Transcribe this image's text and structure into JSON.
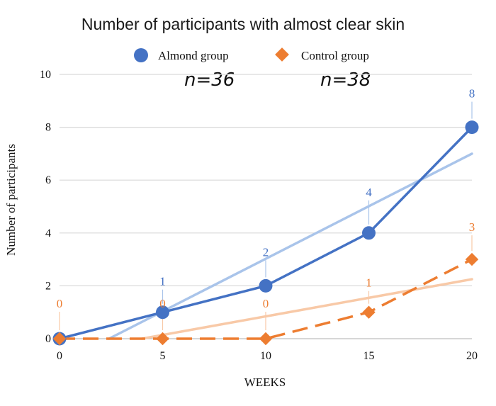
{
  "chart_data": {
    "type": "line",
    "title": "Number of participants with almost clear skin",
    "xlabel": "WEEKS",
    "ylabel": "Number of participants",
    "x": [
      0,
      5,
      10,
      15,
      20
    ],
    "x_ticks": [
      "0",
      "5",
      "10",
      "15",
      "20"
    ],
    "y_ticks": [
      "0",
      "2",
      "4",
      "6",
      "8",
      "10"
    ],
    "xlim": [
      0,
      20
    ],
    "ylim": [
      0,
      10
    ],
    "grid": true,
    "legend_position": "top",
    "annotations": [
      "n=36",
      "n=38"
    ],
    "series": [
      {
        "name": "Almond group",
        "values": [
          0,
          1,
          2,
          4,
          8
        ],
        "data_labels": [
          "",
          "1",
          "2",
          "4",
          "8"
        ],
        "color": "#4472c4",
        "trendline_color": "#a9c4ea",
        "trendline": [
          [
            2.4,
            0
          ],
          [
            20,
            7
          ]
        ],
        "marker": "circle",
        "line_style": "solid"
      },
      {
        "name": "Control group",
        "values": [
          0,
          0,
          0,
          1,
          3
        ],
        "data_labels": [
          "0",
          "0",
          "0",
          "1",
          "3"
        ],
        "color": "#ed7d31",
        "trendline_color": "#f8c9a7",
        "trendline": [
          [
            4,
            0
          ],
          [
            20,
            2.25
          ]
        ],
        "marker": "diamond",
        "line_style": "dashed"
      }
    ]
  }
}
